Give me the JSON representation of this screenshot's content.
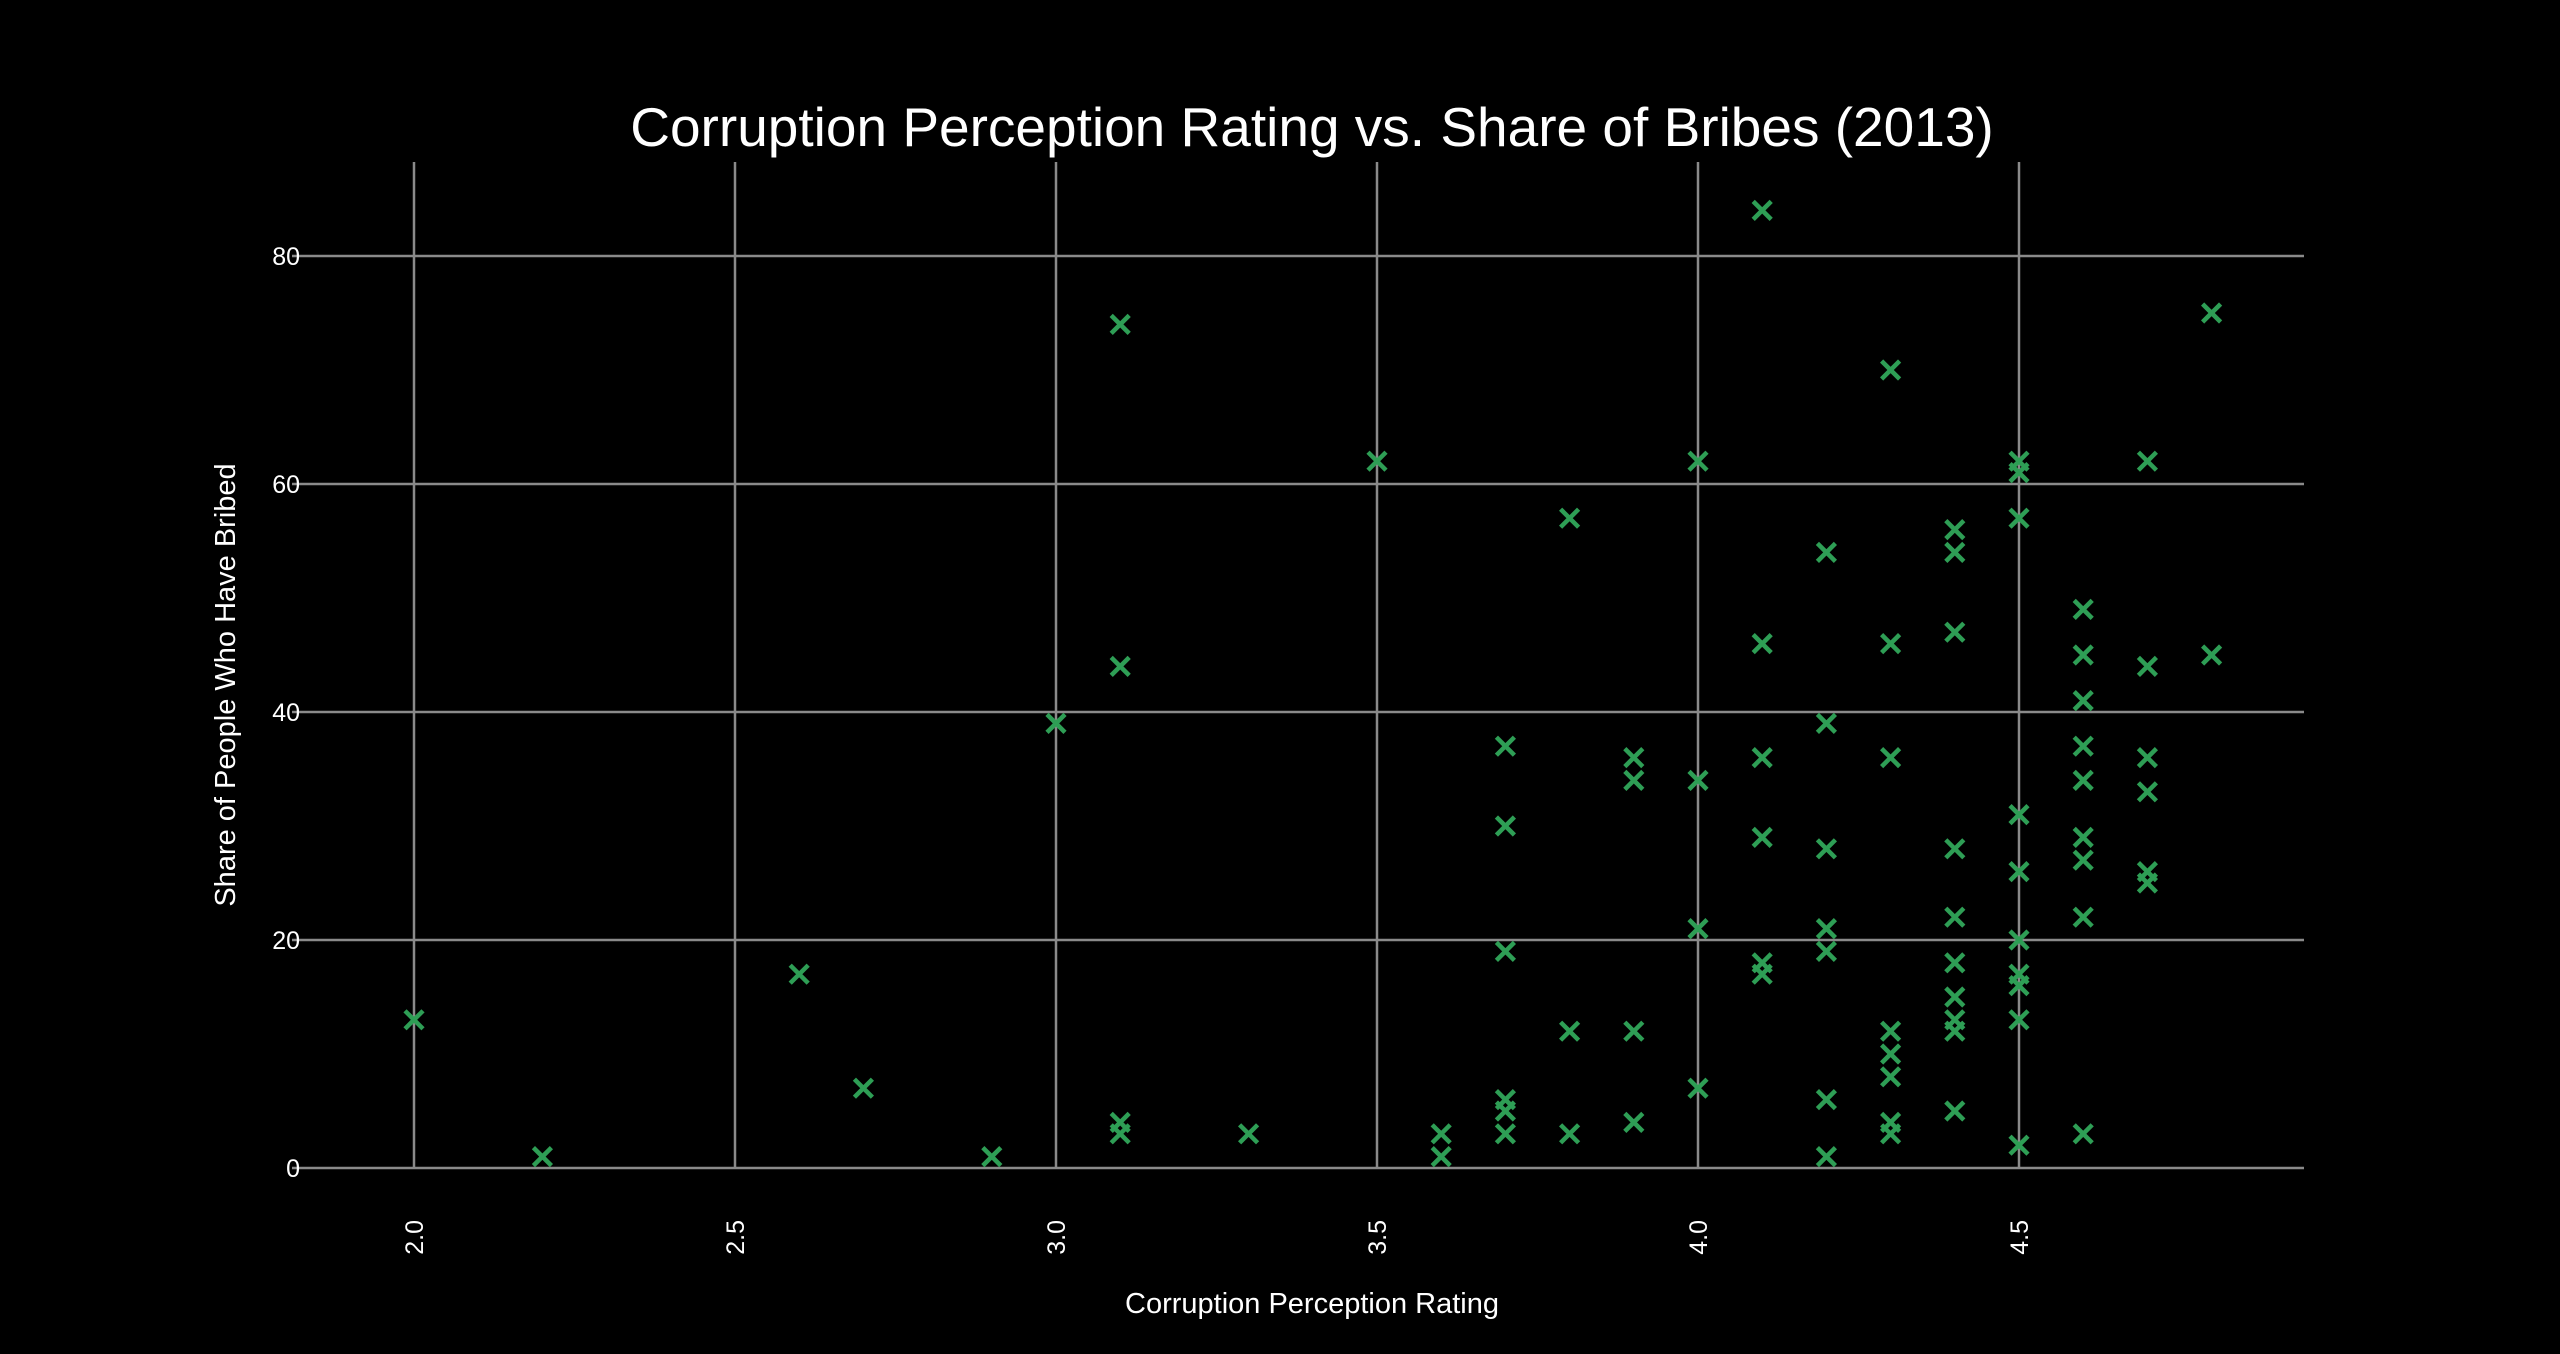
{
  "chart_data": {
    "type": "scatter",
    "title": "Corruption Perception Rating vs. Share of Bribes (2013)",
    "xlabel": "Corruption Perception Rating",
    "ylabel": "Share of People Who Have Bribed",
    "xlim": [
      1.85,
      4.95
    ],
    "ylim": [
      -2,
      88
    ],
    "xticks": [
      2.0,
      2.5,
      3.0,
      3.5,
      4.0,
      4.5
    ],
    "xtick_labels": [
      "2.0",
      "2.5",
      "3.0",
      "3.5",
      "4.0",
      "4.5"
    ],
    "yticks": [
      0,
      20,
      40,
      60,
      80
    ],
    "ytick_labels": [
      "0",
      "20",
      "40",
      "60",
      "80"
    ],
    "grid": true,
    "marker": "x",
    "marker_color": "#2e9e55",
    "background": "#000000",
    "points": [
      [
        2.0,
        13
      ],
      [
        2.2,
        1
      ],
      [
        2.6,
        17
      ],
      [
        2.7,
        7
      ],
      [
        2.9,
        1
      ],
      [
        3.0,
        39
      ],
      [
        3.1,
        74
      ],
      [
        3.1,
        44
      ],
      [
        3.1,
        4
      ],
      [
        3.1,
        3
      ],
      [
        3.3,
        3
      ],
      [
        3.5,
        62
      ],
      [
        3.6,
        3
      ],
      [
        3.6,
        1
      ],
      [
        3.7,
        37
      ],
      [
        3.7,
        30
      ],
      [
        3.7,
        19
      ],
      [
        3.7,
        6
      ],
      [
        3.7,
        5
      ],
      [
        3.7,
        3
      ],
      [
        3.8,
        57
      ],
      [
        3.8,
        12
      ],
      [
        3.8,
        3
      ],
      [
        3.9,
        36
      ],
      [
        3.9,
        34
      ],
      [
        3.9,
        12
      ],
      [
        3.9,
        4
      ],
      [
        4.0,
        62
      ],
      [
        4.0,
        34
      ],
      [
        4.0,
        21
      ],
      [
        4.0,
        7
      ],
      [
        4.1,
        84
      ],
      [
        4.1,
        46
      ],
      [
        4.1,
        36
      ],
      [
        4.1,
        29
      ],
      [
        4.1,
        18
      ],
      [
        4.1,
        17
      ],
      [
        4.2,
        54
      ],
      [
        4.2,
        39
      ],
      [
        4.2,
        28
      ],
      [
        4.2,
        21
      ],
      [
        4.2,
        19
      ],
      [
        4.2,
        6
      ],
      [
        4.2,
        1
      ],
      [
        4.3,
        70
      ],
      [
        4.3,
        46
      ],
      [
        4.3,
        36
      ],
      [
        4.3,
        12
      ],
      [
        4.3,
        10
      ],
      [
        4.3,
        8
      ],
      [
        4.3,
        4
      ],
      [
        4.3,
        3
      ],
      [
        4.4,
        56
      ],
      [
        4.4,
        54
      ],
      [
        4.4,
        47
      ],
      [
        4.4,
        28
      ],
      [
        4.4,
        22
      ],
      [
        4.4,
        18
      ],
      [
        4.4,
        15
      ],
      [
        4.4,
        13
      ],
      [
        4.4,
        12
      ],
      [
        4.4,
        5
      ],
      [
        4.5,
        62
      ],
      [
        4.5,
        61
      ],
      [
        4.5,
        57
      ],
      [
        4.5,
        31
      ],
      [
        4.5,
        26
      ],
      [
        4.5,
        20
      ],
      [
        4.5,
        17
      ],
      [
        4.5,
        16
      ],
      [
        4.5,
        13
      ],
      [
        4.5,
        2
      ],
      [
        4.6,
        49
      ],
      [
        4.6,
        45
      ],
      [
        4.6,
        41
      ],
      [
        4.6,
        37
      ],
      [
        4.6,
        34
      ],
      [
        4.6,
        29
      ],
      [
        4.6,
        27
      ],
      [
        4.6,
        22
      ],
      [
        4.6,
        3
      ],
      [
        4.7,
        62
      ],
      [
        4.7,
        44
      ],
      [
        4.7,
        36
      ],
      [
        4.7,
        33
      ],
      [
        4.7,
        26
      ],
      [
        4.7,
        25
      ],
      [
        4.8,
        75
      ],
      [
        4.8,
        45
      ]
    ]
  }
}
